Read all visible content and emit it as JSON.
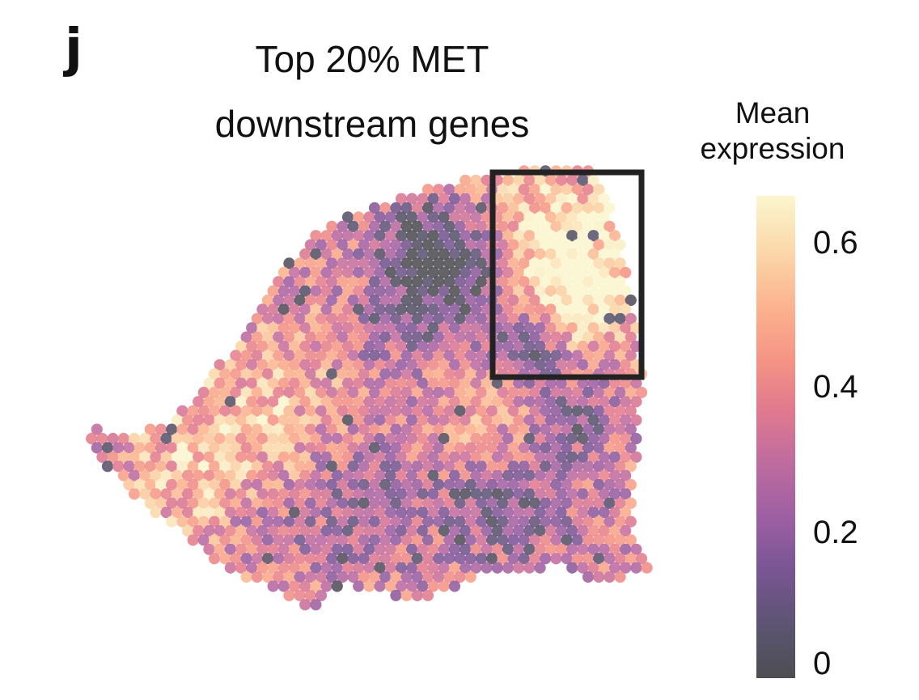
{
  "panel_label": "j",
  "title_lines": [
    "Top 20% MET",
    "downstream genes"
  ],
  "colorbar": {
    "title_lines": [
      "Mean",
      "expression"
    ],
    "ticks": [
      "0.6",
      "0.4",
      "0.2",
      "0"
    ],
    "tick_values": [
      0.6,
      0.4,
      0.2,
      0
    ],
    "range": [
      0,
      0.65
    ],
    "colormap": "magma-like",
    "stops": [
      "#4e4d52",
      "#5a5470",
      "#7a5594",
      "#9c5fa2",
      "#c06c9f",
      "#e27a8e",
      "#f59485",
      "#fbb38e",
      "#fbd6a8",
      "#fbf6cf"
    ]
  },
  "chart_data": {
    "type": "heatmap",
    "subtype": "spatial-transcriptomics-spot-map",
    "title": "Top 20% MET downstream genes",
    "value_label": "Mean expression",
    "value_range": [
      0,
      0.65
    ],
    "legend": "right",
    "highlight_box": {
      "label": "region of interest",
      "location": "upper-right of tissue"
    },
    "regions": [
      {
        "name": "upper-right (boxed)",
        "mean_expression": 0.5
      },
      {
        "name": "upper-center core",
        "mean_expression": 0.1
      },
      {
        "name": "left lobe",
        "mean_expression": 0.42
      },
      {
        "name": "lower-center",
        "mean_expression": 0.25
      },
      {
        "name": "lower-right edge",
        "mean_expression": 0.35
      }
    ],
    "low_hotspots": [
      {
        "name": "central dark cluster",
        "value": 0.02
      },
      {
        "name": "box lower-left cluster",
        "value": 0.03
      },
      {
        "name": "right-mid cluster",
        "value": 0.04
      },
      {
        "name": "lower-left cluster",
        "value": 0.05
      },
      {
        "name": "lower-right cluster",
        "value": 0.05
      }
    ]
  }
}
